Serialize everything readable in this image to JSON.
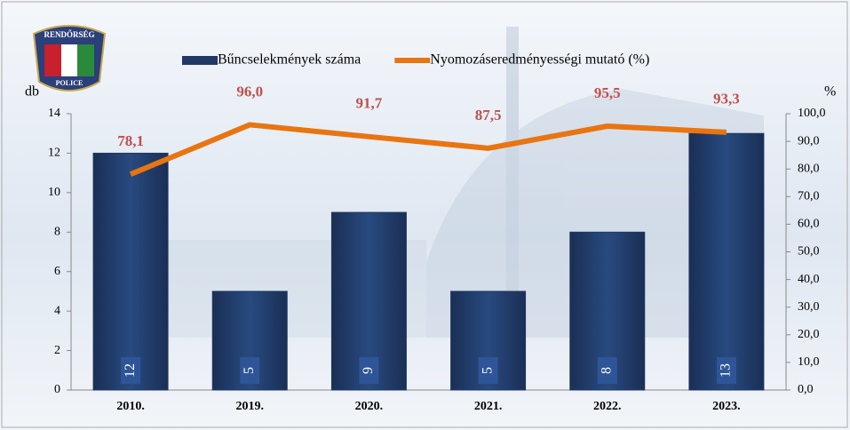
{
  "logo": {
    "top": "RENDŐRSÉG",
    "bottom": "POLICE"
  },
  "chart_data": {
    "type": "bar",
    "y_label": "db",
    "y2_label": "%",
    "categories": [
      "2010.",
      "2019.",
      "2020.",
      "2021.",
      "2022.",
      "2023."
    ],
    "series": [
      {
        "name": "Bűncselekmények száma",
        "type": "bar",
        "color": "#1f3864",
        "axis": "y",
        "values": [
          12,
          5,
          9,
          5,
          8,
          13
        ]
      },
      {
        "name": "Nyomozáseredményességi mutató (%)",
        "type": "line",
        "color": "#e87511",
        "axis": "y2",
        "values": [
          78.1,
          96.0,
          91.7,
          87.5,
          95.5,
          93.3
        ],
        "value_labels": [
          "78,1",
          "96,0",
          "91,7",
          "87,5",
          "95,5",
          "93,3"
        ],
        "label_color": "#c0504d"
      }
    ],
    "ylim": [
      0,
      14
    ],
    "yticks": [
      0,
      2,
      4,
      6,
      8,
      10,
      12,
      14
    ],
    "y2lim": [
      0,
      100
    ],
    "y2ticks": [
      {
        "value": 0,
        "label": "0,0"
      },
      {
        "value": 10,
        "label": "10,0"
      },
      {
        "value": 20,
        "label": "20,0"
      },
      {
        "value": 30,
        "label": "30,0"
      },
      {
        "value": 40,
        "label": "40,0"
      },
      {
        "value": 50,
        "label": "50,0"
      },
      {
        "value": 60,
        "label": "60,0"
      },
      {
        "value": 70,
        "label": "70,0"
      },
      {
        "value": 80,
        "label": "80,0"
      },
      {
        "value": 90,
        "label": "90,0"
      },
      {
        "value": 100,
        "label": "100,0"
      }
    ],
    "legend": "top"
  }
}
